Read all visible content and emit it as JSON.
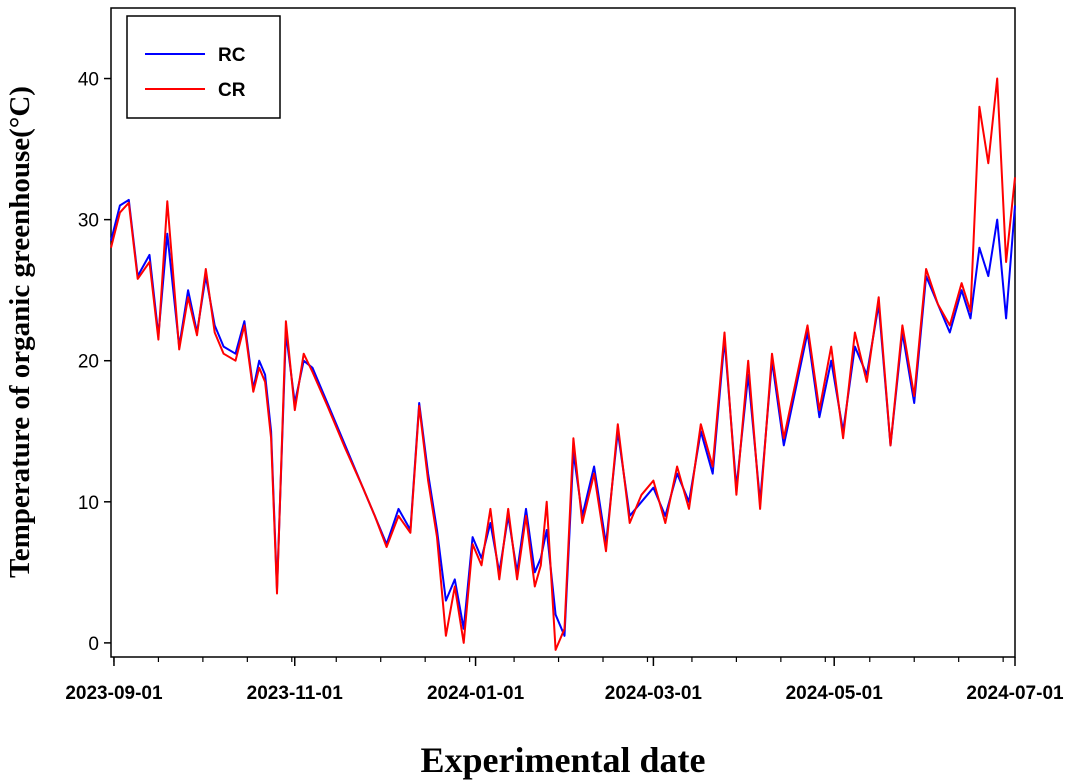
{
  "chart_data": {
    "type": "line",
    "xlabel": "Experimental date",
    "ylabel": "Temperature of organic greenhouse(°C)",
    "xlim": [
      "2023-08-31",
      "2024-07-01"
    ],
    "ylim": [
      -1,
      45
    ],
    "x_ticks": [
      "2023-09-01",
      "2023-11-01",
      "2024-01-01",
      "2024-03-01",
      "2024-05-01",
      "2024-07-01"
    ],
    "y_ticks": [
      0,
      10,
      20,
      30,
      40
    ],
    "grid": false,
    "legend_position": "top-left",
    "colors": {
      "RC": "#0000ff",
      "CR": "#ff0000"
    },
    "series": [
      {
        "name": "RC",
        "x": [
          "2023-08-31",
          "2023-09-03",
          "2023-09-06",
          "2023-09-09",
          "2023-09-13",
          "2023-09-16",
          "2023-09-19",
          "2023-09-23",
          "2023-09-26",
          "2023-09-29",
          "2023-10-02",
          "2023-10-05",
          "2023-10-08",
          "2023-10-12",
          "2023-10-15",
          "2023-10-18",
          "2023-10-20",
          "2023-10-22",
          "2023-10-24",
          "2023-10-26",
          "2023-10-29",
          "2023-11-01",
          "2023-11-04",
          "2023-11-07",
          "2023-11-12",
          "2023-11-18",
          "2023-11-24",
          "2023-11-28",
          "2023-12-02",
          "2023-12-06",
          "2023-12-10",
          "2023-12-13",
          "2023-12-16",
          "2023-12-19",
          "2023-12-22",
          "2023-12-25",
          "2023-12-28",
          "2023-12-31",
          "2024-01-03",
          "2024-01-06",
          "2024-01-09",
          "2024-01-12",
          "2024-01-15",
          "2024-01-18",
          "2024-01-21",
          "2024-01-23",
          "2024-01-25",
          "2024-01-28",
          "2024-01-31",
          "2024-02-03",
          "2024-02-06",
          "2024-02-10",
          "2024-02-14",
          "2024-02-18",
          "2024-02-22",
          "2024-02-26",
          "2024-03-01",
          "2024-03-05",
          "2024-03-09",
          "2024-03-13",
          "2024-03-17",
          "2024-03-21",
          "2024-03-25",
          "2024-03-29",
          "2024-04-02",
          "2024-04-06",
          "2024-04-10",
          "2024-04-14",
          "2024-04-18",
          "2024-04-22",
          "2024-04-26",
          "2024-04-30",
          "2024-05-04",
          "2024-05-08",
          "2024-05-12",
          "2024-05-16",
          "2024-05-20",
          "2024-05-24",
          "2024-05-28",
          "2024-06-01",
          "2024-06-05",
          "2024-06-09",
          "2024-06-13",
          "2024-06-16",
          "2024-06-19",
          "2024-06-22",
          "2024-06-25",
          "2024-06-28",
          "2024-07-01"
        ],
        "values": [
          28.5,
          31.0,
          31.4,
          26.0,
          27.5,
          21.8,
          29.0,
          21.0,
          25.0,
          22.0,
          26.0,
          22.5,
          21.0,
          20.5,
          22.8,
          18.0,
          20.0,
          19.0,
          15.0,
          3.8,
          22.0,
          17.0,
          20.0,
          19.5,
          17.0,
          14.0,
          11.0,
          9.0,
          7.0,
          9.5,
          8.0,
          17.0,
          12.0,
          8.0,
          3.0,
          4.5,
          1.0,
          7.5,
          6.0,
          8.5,
          5.0,
          9.0,
          5.0,
          9.5,
          5.0,
          6.0,
          8.0,
          2.0,
          0.5,
          13.5,
          9.0,
          12.5,
          7.0,
          15.0,
          9.0,
          10.0,
          11.0,
          9.0,
          12.0,
          10.0,
          15.0,
          12.0,
          21.5,
          11.0,
          19.0,
          10.0,
          20.0,
          14.0,
          18.0,
          22.0,
          16.0,
          20.0,
          15.0,
          21.0,
          19.0,
          24.0,
          14.0,
          22.0,
          17.0,
          26.0,
          24.0,
          22.0,
          25.0,
          23.0,
          28.0,
          26.0,
          30.0,
          23.0,
          31.0
        ]
      },
      {
        "name": "CR",
        "x": [
          "2023-08-31",
          "2023-09-03",
          "2023-09-06",
          "2023-09-09",
          "2023-09-13",
          "2023-09-16",
          "2023-09-19",
          "2023-09-23",
          "2023-09-26",
          "2023-09-29",
          "2023-10-02",
          "2023-10-05",
          "2023-10-08",
          "2023-10-12",
          "2023-10-15",
          "2023-10-18",
          "2023-10-20",
          "2023-10-22",
          "2023-10-24",
          "2023-10-26",
          "2023-10-29",
          "2023-11-01",
          "2023-11-04",
          "2023-11-07",
          "2023-11-12",
          "2023-11-18",
          "2023-11-24",
          "2023-11-28",
          "2023-12-02",
          "2023-12-06",
          "2023-12-10",
          "2023-12-13",
          "2023-12-16",
          "2023-12-19",
          "2023-12-22",
          "2023-12-25",
          "2023-12-28",
          "2023-12-31",
          "2024-01-03",
          "2024-01-06",
          "2024-01-09",
          "2024-01-12",
          "2024-01-15",
          "2024-01-18",
          "2024-01-21",
          "2024-01-23",
          "2024-01-25",
          "2024-01-28",
          "2024-01-31",
          "2024-02-03",
          "2024-02-06",
          "2024-02-10",
          "2024-02-14",
          "2024-02-18",
          "2024-02-22",
          "2024-02-26",
          "2024-03-01",
          "2024-03-05",
          "2024-03-09",
          "2024-03-13",
          "2024-03-17",
          "2024-03-21",
          "2024-03-25",
          "2024-03-29",
          "2024-04-02",
          "2024-04-06",
          "2024-04-10",
          "2024-04-14",
          "2024-04-18",
          "2024-04-22",
          "2024-04-26",
          "2024-04-30",
          "2024-05-04",
          "2024-05-08",
          "2024-05-12",
          "2024-05-16",
          "2024-05-20",
          "2024-05-24",
          "2024-05-28",
          "2024-06-01",
          "2024-06-05",
          "2024-06-09",
          "2024-06-13",
          "2024-06-16",
          "2024-06-19",
          "2024-06-22",
          "2024-06-25",
          "2024-06-28",
          "2024-07-01"
        ],
        "values": [
          28.0,
          30.5,
          31.2,
          25.8,
          27.0,
          21.5,
          31.3,
          20.8,
          24.5,
          21.8,
          26.5,
          22.0,
          20.5,
          20.0,
          22.5,
          17.8,
          19.5,
          18.5,
          14.5,
          3.5,
          22.8,
          16.5,
          20.5,
          19.2,
          16.8,
          13.8,
          11.0,
          9.0,
          6.8,
          9.0,
          7.8,
          16.8,
          11.5,
          7.5,
          0.5,
          4.0,
          0.0,
          7.0,
          5.5,
          9.5,
          4.5,
          9.5,
          4.5,
          9.0,
          4.0,
          5.5,
          10.0,
          -0.5,
          1.0,
          14.5,
          8.5,
          12.0,
          6.5,
          15.5,
          8.5,
          10.5,
          11.5,
          8.5,
          12.5,
          9.5,
          15.5,
          12.5,
          22.0,
          10.5,
          20.0,
          9.5,
          20.5,
          14.5,
          18.5,
          22.5,
          16.5,
          21.0,
          14.5,
          22.0,
          18.5,
          24.5,
          14.0,
          22.5,
          17.5,
          26.5,
          24.0,
          22.5,
          25.5,
          23.5,
          38.0,
          34.0,
          40.0,
          27.0,
          33.0
        ]
      }
    ]
  }
}
